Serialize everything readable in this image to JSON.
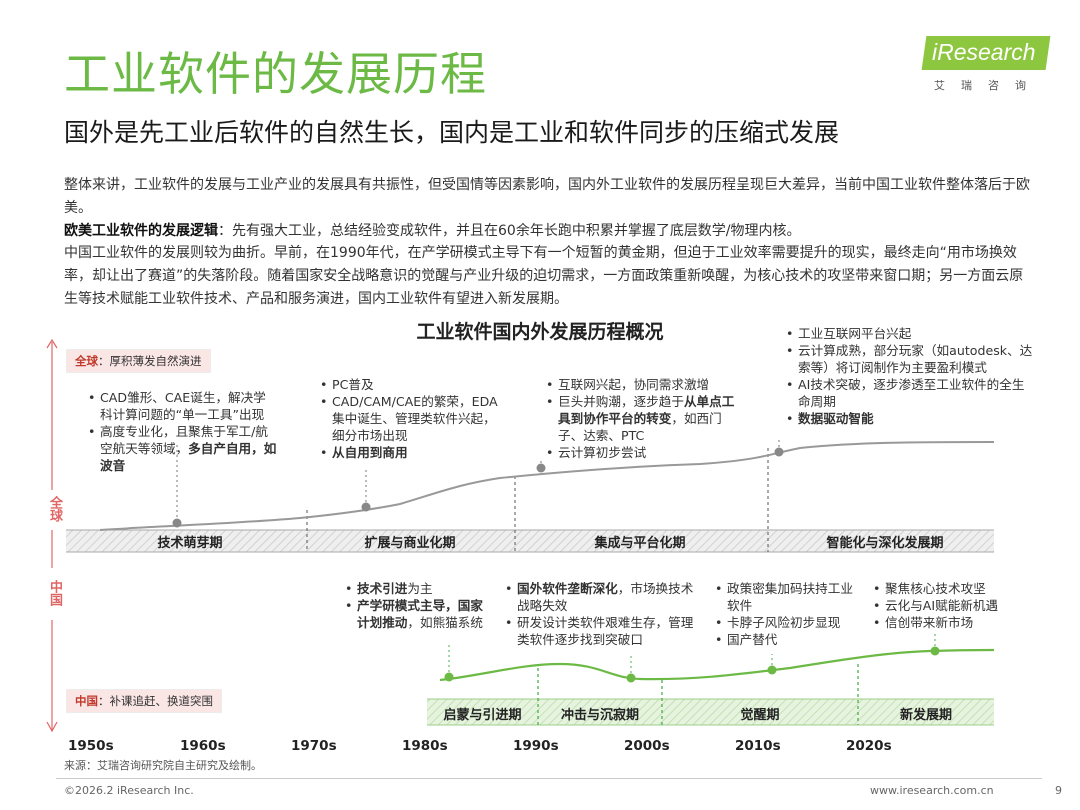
{
  "header": {
    "title": "工业软件的发展历程",
    "subtitle": "国外是先工业后软件的自然生长，国内是工业和软件同步的压缩式发展",
    "logo_text": "iResearch",
    "logo_sub": "艾瑞咨询"
  },
  "intro": {
    "p1": "整体来讲，工业软件的发展与工业产业的发展具有共振性，但受国情等因素影响，国内外工业软件的发展历程呈现巨大差异，当前中国工业软件整体落后于欧美。",
    "p2_bold": "欧美工业软件的发展逻辑",
    "p2_rest": "：先有强大工业，总结经验变成软件，并且在60余年长跑中积累并掌握了底层数学/物理内核。",
    "p3": "中国工业软件的发展则较为曲折。早前，在1990年代，在产学研模式主导下有一个短暂的黄金期，但迫于工业效率需要提升的现实，最终走向“用市场换效率，却让出了赛道”的失落阶段。随着国家安全战略意识的觉醒与产业升级的迫切需求，一方面政策重新唤醒，为核心技术的攻坚带来窗口期；另一方面云原生等技术赋能工业软件技术、产品和服务演进，国内工业软件有望进入新发展期。"
  },
  "diagram": {
    "title": "工业软件国内外发展历程概况",
    "global_box_prefix": "全球",
    "global_box_text": "：厚积薄发自然演进",
    "china_box_prefix": "中国",
    "china_box_text": "：补课追赶、换道突围",
    "global_axis_label": "全球",
    "china_axis_label": "中国",
    "global_phases": [
      "技术萌芽期",
      "扩展与商业化期",
      "集成与平台化期",
      "智能化与深化发展期"
    ],
    "china_phases": [
      "启蒙与引进期",
      "冲击与沉寂期",
      "觉醒期",
      "新发展期"
    ],
    "decades": [
      "1950s",
      "1960s",
      "1970s",
      "1980s",
      "1990s",
      "2000s",
      "2010s",
      "2020s"
    ],
    "global_notes": [
      {
        "items": [
          {
            "text": "CAD雏形、CAE诞生，解决学科计算问题的“单一工具”出现"
          },
          {
            "text": "高度专业化，且聚焦于军工/航空航天等领域，",
            "bold": "多自产自用，如波音"
          }
        ]
      },
      {
        "items": [
          {
            "text": "PC普及"
          },
          {
            "text": "CAD/CAM/CAE的繁荣，EDA集中诞生、管理类软件兴起，细分市场出现"
          },
          {
            "text": "",
            "bold": "从自用到商用"
          }
        ]
      },
      {
        "items": [
          {
            "text": "互联网兴起，协同需求激增"
          },
          {
            "text": "巨头并购潮，逐步趋于",
            "bold": "从单点工具到协作平台的转变",
            "after": "，如西门子、达索、PTC"
          },
          {
            "text": "云计算初步尝试"
          }
        ]
      },
      {
        "items": [
          {
            "text": "工业互联网平台兴起"
          },
          {
            "text": "云计算成熟，部分玩家（如autodesk、达索等）将订阅制作为主要盈利模式"
          },
          {
            "text": "AI技术突破，逐步渗透至工业软件的全生命周期"
          },
          {
            "text": "",
            "bold": "数据驱动智能"
          }
        ]
      }
    ],
    "china_notes": [
      {
        "items": [
          {
            "text": "",
            "bold": "技术引进",
            "after": "为主"
          },
          {
            "text": "",
            "bold": "产学研模式主导，国家计划推动",
            "after": "，如熊猫系统"
          }
        ]
      },
      {
        "items": [
          {
            "text": "",
            "bold": "国外软件垄断深化",
            "after": "，市场换技术战略失效"
          },
          {
            "text": "研发设计类软件艰难生存，管理类软件逐步找到突破口"
          }
        ]
      },
      {
        "items": [
          {
            "text": "政策密集加码扶持工业软件"
          },
          {
            "text": "卡脖子风险初步显现"
          },
          {
            "text": "国产替代"
          }
        ]
      },
      {
        "items": [
          {
            "text": "聚焦核心技术攻坚"
          },
          {
            "text": "云化与AI赋能新机遇"
          },
          {
            "text": "信创带来新市场"
          }
        ]
      }
    ]
  },
  "footer": {
    "source": "来源：艾瑞咨询研究院自主研究及绘制。",
    "copyright": "©2026.2 iResearch Inc.",
    "website": "www.iresearch.com.cn",
    "page": "9"
  },
  "colors": {
    "title_green": "#6cba45",
    "global_red": "#e06666",
    "china_green": "#4caf50",
    "phase_grey": "#e6e6e6",
    "phase_green": "#e3f1da"
  }
}
